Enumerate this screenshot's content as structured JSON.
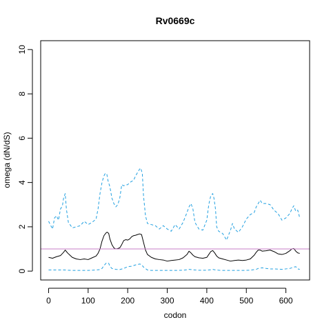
{
  "chart_data": {
    "type": "line",
    "title": "Rv0669c",
    "xlabel": "codon",
    "ylabel": "omega (dN/dS)",
    "xlim": [
      -20,
      660
    ],
    "ylim": [
      -0.4,
      10.4
    ],
    "xticks": [
      0,
      100,
      200,
      300,
      400,
      500,
      600
    ],
    "yticks": [
      0,
      2,
      4,
      6,
      8,
      10
    ],
    "grid": false,
    "reference_line": {
      "y": 1,
      "color": "#c77cc7"
    },
    "series": [
      {
        "style": "dashed",
        "color": "#1f9fe0",
        "x": [
          0,
          10,
          15,
          20,
          25,
          30,
          35,
          38,
          42,
          45,
          50,
          60,
          70,
          80,
          90,
          100,
          110,
          120,
          125,
          130,
          135,
          140,
          143,
          147,
          150,
          155,
          160,
          165,
          170,
          175,
          180,
          185,
          190,
          195,
          200,
          205,
          210,
          215,
          220,
          225,
          230,
          233,
          237,
          240,
          245,
          250,
          260,
          270,
          280,
          290,
          300,
          310,
          320,
          330,
          340,
          350,
          355,
          360,
          365,
          370,
          380,
          390,
          400,
          405,
          410,
          415,
          418,
          422,
          425,
          430,
          440,
          450,
          460,
          465,
          470,
          480,
          490,
          500,
          510,
          520,
          525,
          530,
          535,
          540,
          550,
          560,
          570,
          580,
          590,
          600,
          610,
          615,
          620,
          625,
          630,
          635
        ],
        "y": [
          2.25,
          1.9,
          2.4,
          2.5,
          2.3,
          2.8,
          2.95,
          3.3,
          3.5,
          2.8,
          2.2,
          1.95,
          2.0,
          2.05,
          2.25,
          2.1,
          2.2,
          2.35,
          2.8,
          3.5,
          4.0,
          4.3,
          4.4,
          4.4,
          4.1,
          3.8,
          3.3,
          3.05,
          2.9,
          3.0,
          3.3,
          3.9,
          3.85,
          3.9,
          3.9,
          4.0,
          4.05,
          4.1,
          4.3,
          4.45,
          4.6,
          4.65,
          4.4,
          3.4,
          2.5,
          2.15,
          2.1,
          2.05,
          1.9,
          2.05,
          1.9,
          1.8,
          2.1,
          1.9,
          2.2,
          2.65,
          2.9,
          3.05,
          2.8,
          2.2,
          1.9,
          1.85,
          2.3,
          3.0,
          3.4,
          3.5,
          3.3,
          2.8,
          2.0,
          1.8,
          1.7,
          1.4,
          1.85,
          2.15,
          1.9,
          1.75,
          2.0,
          2.35,
          2.55,
          2.65,
          2.9,
          3.05,
          3.2,
          3.05,
          3.05,
          3.0,
          2.75,
          2.6,
          2.3,
          2.4,
          2.6,
          2.8,
          2.95,
          2.7,
          2.75,
          2.4
        ]
      },
      {
        "style": "solid",
        "color": "#000000",
        "x": [
          0,
          10,
          20,
          30,
          38,
          42,
          48,
          55,
          60,
          70,
          80,
          90,
          100,
          110,
          120,
          125,
          130,
          135,
          140,
          145,
          148,
          152,
          155,
          160,
          165,
          170,
          175,
          180,
          185,
          190,
          195,
          200,
          205,
          210,
          215,
          220,
          225,
          230,
          235,
          240,
          245,
          250,
          260,
          270,
          280,
          290,
          300,
          310,
          320,
          330,
          340,
          350,
          355,
          360,
          365,
          370,
          380,
          390,
          400,
          405,
          410,
          415,
          420,
          425,
          430,
          440,
          450,
          460,
          470,
          480,
          490,
          500,
          510,
          520,
          525,
          530,
          535,
          540,
          550,
          560,
          570,
          580,
          590,
          600,
          610,
          615,
          620,
          625,
          630,
          635
        ],
        "y": [
          0.62,
          0.58,
          0.65,
          0.7,
          0.85,
          0.95,
          0.82,
          0.7,
          0.62,
          0.55,
          0.52,
          0.55,
          0.52,
          0.6,
          0.68,
          0.8,
          1.0,
          1.35,
          1.6,
          1.72,
          1.76,
          1.7,
          1.45,
          1.2,
          1.05,
          1.0,
          1.02,
          1.05,
          1.2,
          1.38,
          1.42,
          1.4,
          1.45,
          1.55,
          1.6,
          1.62,
          1.65,
          1.68,
          1.65,
          1.3,
          0.95,
          0.75,
          0.62,
          0.55,
          0.52,
          0.5,
          0.45,
          0.48,
          0.5,
          0.52,
          0.6,
          0.75,
          0.9,
          0.82,
          0.72,
          0.65,
          0.6,
          0.58,
          0.62,
          0.75,
          0.88,
          0.93,
          0.82,
          0.68,
          0.6,
          0.55,
          0.5,
          0.45,
          0.48,
          0.5,
          0.48,
          0.5,
          0.55,
          0.72,
          0.85,
          0.95,
          0.95,
          0.9,
          0.92,
          0.95,
          0.88,
          0.78,
          0.75,
          0.8,
          0.92,
          1.0,
          1.02,
          0.9,
          0.82,
          0.8
        ]
      },
      {
        "style": "dashed",
        "color": "#1f9fe0",
        "x": [
          0,
          20,
          40,
          60,
          80,
          100,
          120,
          130,
          135,
          140,
          145,
          148,
          152,
          155,
          160,
          170,
          180,
          190,
          200,
          210,
          215,
          220,
          225,
          230,
          235,
          240,
          250,
          260,
          280,
          300,
          320,
          340,
          350,
          355,
          360,
          370,
          380,
          400,
          410,
          415,
          420,
          430,
          440,
          450,
          470,
          490,
          510,
          525,
          530,
          540,
          550,
          560,
          570,
          590,
          600,
          610,
          615,
          620,
          625,
          630,
          635
        ],
        "y": [
          0.05,
          0.05,
          0.05,
          0.03,
          0.03,
          0.03,
          0.05,
          0.07,
          0.12,
          0.25,
          0.35,
          0.38,
          0.35,
          0.22,
          0.12,
          0.08,
          0.07,
          0.12,
          0.2,
          0.22,
          0.25,
          0.28,
          0.3,
          0.32,
          0.3,
          0.18,
          0.05,
          0.03,
          0.03,
          0.03,
          0.03,
          0.04,
          0.06,
          0.08,
          0.07,
          0.05,
          0.04,
          0.04,
          0.06,
          0.08,
          0.06,
          0.04,
          0.03,
          0.03,
          0.03,
          0.03,
          0.04,
          0.08,
          0.12,
          0.15,
          0.12,
          0.1,
          0.1,
          0.08,
          0.1,
          0.12,
          0.15,
          0.18,
          0.2,
          0.1,
          0.08
        ]
      }
    ]
  }
}
